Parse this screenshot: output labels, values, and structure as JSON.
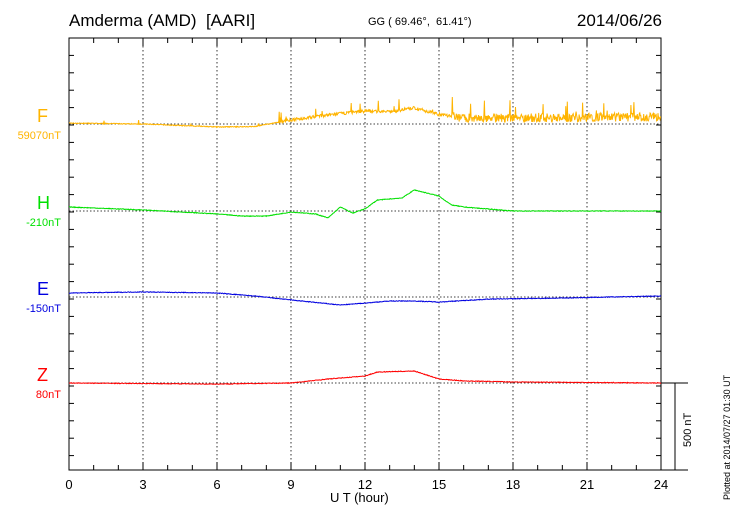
{
  "title": "Amderma (AMD)  [AARI]",
  "coords": "GG ( 69.46°,  61.41°)",
  "date": "2014/06/26",
  "plotted": "Plotted at 2014/07/27 01:30 UT",
  "scale_label": "500 nT",
  "chart_data": {
    "type": "line",
    "xlabel": "U T (hour)",
    "xlim": [
      0,
      24
    ],
    "xticks": [
      "0",
      "3",
      "6",
      "9",
      "12",
      "15",
      "18",
      "21",
      "24"
    ],
    "scale_nT": 500,
    "series": [
      {
        "name": "F",
        "baseline_label": "59070nT",
        "color": "#ffb400",
        "noise_after_hour": 15.5,
        "x": [
          0,
          3,
          6,
          7.5,
          9,
          10.5,
          12,
          13,
          14,
          15,
          16,
          18,
          21,
          24
        ],
        "y": [
          5,
          0,
          -17,
          -15,
          23,
          52,
          75,
          70,
          92,
          55,
          35,
          35,
          38,
          40
        ]
      },
      {
        "name": "H",
        "baseline_label": "-210nT",
        "color": "#00e000",
        "x": [
          0,
          3,
          6,
          7,
          8,
          9,
          10,
          10.5,
          11,
          11.5,
          12,
          12.5,
          13.5,
          14,
          15,
          15.5,
          16,
          18,
          24
        ],
        "y": [
          23,
          6,
          -17,
          -29,
          -29,
          -6,
          -17,
          -40,
          23,
          -12,
          12,
          63,
          75,
          121,
          86,
          35,
          23,
          0,
          0
        ]
      },
      {
        "name": "E",
        "baseline_label": "-150nT",
        "color": "#0000e0",
        "x": [
          0,
          3,
          6,
          7.5,
          9,
          11,
          12,
          13,
          14,
          15,
          17,
          20,
          24
        ],
        "y": [
          23,
          29,
          23,
          6,
          -17,
          -46,
          -35,
          -23,
          -23,
          -29,
          -12,
          -6,
          6
        ]
      },
      {
        "name": "Z",
        "baseline_label": "80nT",
        "color": "#ff0000",
        "x": [
          0,
          6,
          9,
          10.5,
          12,
          12.5,
          14,
          14.5,
          15,
          16,
          18,
          24
        ],
        "y": [
          0,
          -6,
          0,
          23,
          40,
          63,
          69,
          46,
          23,
          12,
          6,
          0
        ]
      }
    ]
  }
}
